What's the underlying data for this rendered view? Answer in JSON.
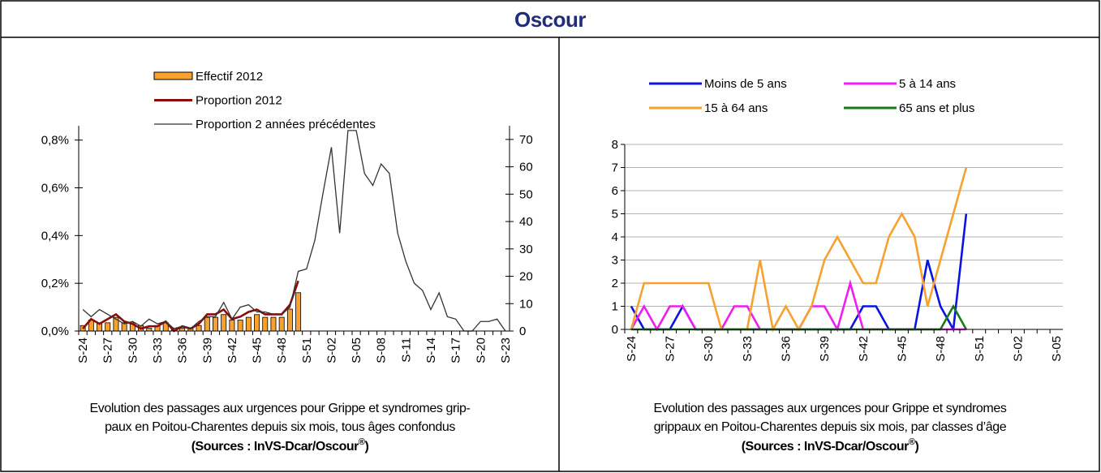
{
  "header": {
    "title": "Oscour"
  },
  "chart_data": [
    {
      "type": "combo",
      "categories": [
        "S-24",
        null,
        null,
        "S-27",
        null,
        null,
        "S-30",
        null,
        null,
        "S-33",
        null,
        null,
        "S-36",
        null,
        null,
        "S-39",
        null,
        null,
        "S-42",
        null,
        null,
        "S-45",
        null,
        null,
        "S-48",
        null,
        null,
        "S-51",
        null,
        null,
        "S-02",
        null,
        null,
        "S-05",
        null,
        null,
        "S-08",
        null,
        null,
        "S-11",
        null,
        null,
        "S-14",
        null,
        null,
        "S-17",
        null,
        null,
        "S-20",
        null,
        null,
        "S-23"
      ],
      "series": [
        {
          "name": "Effectif 2012",
          "type": "bar",
          "axis": "y2",
          "color": "#f7a12e",
          "values": [
            2,
            4,
            3,
            3,
            5,
            3,
            3,
            2,
            1,
            2,
            3,
            1,
            1,
            1,
            2,
            5,
            5,
            6,
            4,
            4,
            5,
            6,
            5,
            5,
            5,
            8,
            14,
            null,
            null,
            null,
            null,
            null,
            null,
            null,
            null,
            null,
            null,
            null,
            null,
            null,
            null,
            null,
            null,
            null,
            null,
            null,
            null,
            null,
            null,
            null,
            null,
            null
          ]
        },
        {
          "name": "Proportion 2012",
          "type": "line",
          "color": "#8b0a0a",
          "values": [
            0.01,
            0.05,
            0.03,
            0.05,
            0.07,
            0.04,
            0.03,
            0.01,
            0.02,
            0.02,
            0.04,
            0,
            0.02,
            0.01,
            0.03,
            0.07,
            0.07,
            0.09,
            0.05,
            0.06,
            0.08,
            0.09,
            0.07,
            0.07,
            0.07,
            0.11,
            0.21,
            null,
            null,
            null,
            null,
            null,
            null,
            null,
            null,
            null,
            null,
            null,
            null,
            null,
            null,
            null,
            null,
            null,
            null,
            null,
            null,
            null,
            null,
            null,
            null,
            null
          ]
        },
        {
          "name": "Proportion 2 années précédentes",
          "type": "line",
          "color": "#333333",
          "values": [
            0.09,
            0.06,
            0.09,
            0.07,
            0.05,
            0.03,
            0.04,
            0.02,
            0.05,
            0.03,
            0.04,
            0.01,
            0.02,
            0.01,
            0.04,
            0.06,
            0.06,
            0.12,
            0.05,
            0.1,
            0.11,
            0.08,
            0.08,
            0.07,
            0.07,
            0.1,
            0.25,
            0.26,
            0.38,
            0.58,
            0.77,
            0.41,
            0.84,
            0.84,
            0.66,
            0.61,
            0.7,
            0.66,
            0.41,
            0.29,
            0.2,
            0.17,
            0.09,
            0.16,
            0.06,
            0.05,
            0,
            0,
            0.04,
            0.04,
            0.05,
            0
          ]
        }
      ],
      "ylim": [
        0,
        0.86
      ],
      "yticks": [
        {
          "value": 0,
          "label": "0,0%"
        },
        {
          "value": 0.2,
          "label": "0,2%"
        },
        {
          "value": 0.4,
          "label": "0,4%"
        },
        {
          "value": 0.6,
          "label": "0,6%"
        },
        {
          "value": 0.8,
          "label": "0,8%"
        }
      ],
      "y2lim": [
        0,
        75
      ],
      "y2ticks": [
        0,
        10,
        20,
        30,
        40,
        50,
        60,
        70
      ],
      "grid": false,
      "caption": [
        "Evolution des passages aux urgences pour Grippe et syndromes grip-",
        "paux  en Poitou-Charentes depuis six mois, tous âges confondus"
      ],
      "source": [
        "(Sources : InVS-Dcar/Oscour",
        "®",
        ")"
      ]
    },
    {
      "type": "line",
      "categories": [
        "S-24",
        null,
        null,
        "S-27",
        null,
        null,
        "S-30",
        null,
        null,
        "S-33",
        null,
        null,
        "S-36",
        null,
        null,
        "S-39",
        null,
        null,
        "S-42",
        null,
        null,
        "S-45",
        null,
        null,
        "S-48",
        null,
        null,
        "S-51",
        null,
        null,
        "S-02",
        null,
        null,
        "S-05"
      ],
      "series": [
        {
          "name": "Moins de 5 ans",
          "color": "#0a14e0",
          "values": [
            1,
            0,
            0,
            0,
            1,
            0,
            0,
            0,
            0,
            0,
            0,
            0,
            0,
            0,
            0,
            0,
            0,
            0,
            1,
            1,
            0,
            0,
            0,
            3,
            1,
            0,
            5,
            null,
            null,
            null,
            null,
            null,
            null,
            null
          ]
        },
        {
          "name": "5 à 14 ans",
          "color": "#f21cf2",
          "values": [
            0,
            1,
            0,
            1,
            1,
            0,
            0,
            0,
            1,
            1,
            0,
            0,
            0,
            0,
            1,
            1,
            0,
            2,
            0,
            0,
            0,
            0,
            0,
            0,
            0,
            0,
            0,
            null,
            null,
            null,
            null,
            null,
            null,
            null
          ]
        },
        {
          "name": "15 à 64 ans",
          "color": "#f7a12e",
          "values": [
            0,
            2,
            2,
            2,
            2,
            2,
            2,
            0,
            0,
            0,
            3,
            0,
            1,
            0,
            1,
            3,
            4,
            3,
            2,
            2,
            4,
            5,
            4,
            1,
            3,
            5,
            7,
            null,
            null,
            null,
            null,
            null,
            null,
            null
          ]
        },
        {
          "name": "65 ans et plus",
          "color": "#1a7a1a",
          "values": [
            0,
            0,
            0,
            0,
            0,
            0,
            0,
            0,
            0,
            0,
            0,
            0,
            0,
            0,
            0,
            0,
            0,
            0,
            0,
            0,
            0,
            0,
            0,
            0,
            0,
            1,
            0,
            null,
            null,
            null,
            null,
            null,
            null,
            null
          ]
        }
      ],
      "ylim": [
        0,
        8
      ],
      "yticks": [
        0,
        1,
        2,
        3,
        4,
        5,
        6,
        7,
        8
      ],
      "grid": true,
      "caption": [
        "Evolution des passages aux urgences pour Grippe et syndromes",
        "grippaux  en Poitou-Charentes depuis six mois, par classes d’âge"
      ],
      "source": [
        "(Sources : InVS-Dcar/Oscour",
        "®",
        ")"
      ]
    }
  ]
}
